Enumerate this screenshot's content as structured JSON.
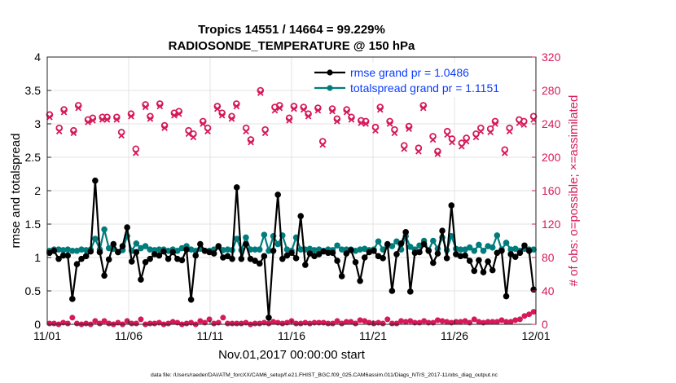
{
  "chart_data": {
    "type": "line",
    "title_line1": "Tropics 14551 / 14664 = 99.229%",
    "title_line2": "RADIOSONDE_TEMPERATURE @ 150 hPa",
    "xlabel": "Nov.01,2017 00:00:00 start",
    "ylabel_left": "rmse and totalspread",
    "ylabel_right": "# of obs: o=possible; ×=assimilated",
    "footnote": "data file: /Users/raeder/DAI/ATM_forcXX/CAM6_setup/f.e21.FHIST_BGC.f09_025.CAM6assim.011/Diags_NTrS_2017-11/obs_diag_output.nc",
    "x_range": [
      0,
      30
    ],
    "xticks": [
      0,
      5,
      10,
      15,
      20,
      25,
      30
    ],
    "xtick_labels": [
      "11/01",
      "11/06",
      "11/11",
      "11/16",
      "11/21",
      "11/26",
      "12/01"
    ],
    "y_left_range": [
      0,
      4
    ],
    "y_left_ticks": [
      0,
      0.5,
      1,
      1.5,
      2,
      2.5,
      3,
      3.5,
      4
    ],
    "y_left_tick_labels": [
      "0",
      "0.5",
      "1",
      "1.5",
      "2",
      "2.5",
      "3",
      "3.5",
      "4"
    ],
    "y_right_range": [
      0,
      320
    ],
    "y_right_ticks": [
      0,
      40,
      80,
      120,
      160,
      200,
      240,
      280,
      320
    ],
    "y_right_tick_labels": [
      "0",
      "40",
      "80",
      "120",
      "160",
      "200",
      "240",
      "280",
      "320"
    ],
    "legend_position": "top-right",
    "colors": {
      "rmse": "#000000",
      "spread": "#007c7c",
      "obs": "#d6195b",
      "legend_text": "#0a3cff"
    },
    "series": [
      {
        "name": "rmse grand pr = 1.0486",
        "axis": "left",
        "values": [
          1.07,
          1.1,
          0.98,
          1.03,
          1.03,
          0.38,
          0.9,
          0.98,
          1.02,
          1.09,
          2.15,
          1.08,
          0.73,
          0.97,
          1.2,
          1.08,
          1.17,
          1.45,
          0.94,
          1.08,
          0.67,
          0.93,
          0.98,
          1.05,
          1.03,
          1.09,
          0.98,
          1.08,
          0.98,
          0.96,
          1.12,
          0.37,
          1.03,
          1.2,
          1.1,
          1.08,
          1.06,
          1.17,
          1.0,
          1.02,
          0.98,
          2.05,
          0.98,
          1.2,
          0.98,
          0.95,
          0.91,
          1.02,
          0.1,
          1.1,
          1.94,
          0.98,
          1.03,
          1.07,
          0.99,
          1.62,
          0.89,
          1.06,
          1.02,
          1.05,
          1.09,
          1.07,
          1.07,
          0.95,
          0.72,
          1.06,
          1.11,
          0.93,
          0.65,
          1.0,
          1.08,
          1.1,
          1.02,
          0.99,
          1.2,
          0.5,
          1.05,
          1.21,
          1.38,
          0.49,
          1.07,
          1.08,
          1.2,
          1.1,
          0.92,
          1.06,
          1.4,
          0.99,
          1.78,
          1.05,
          1.02,
          1.03,
          0.95,
          0.8,
          0.96,
          0.78,
          0.94,
          0.81,
          1.07,
          1.1,
          0.42,
          1.05,
          1.01,
          1.07,
          1.18,
          1.1,
          0.52
        ]
      },
      {
        "name": "totalspread grand pr = 1.1151",
        "axis": "left",
        "values": [
          1.1,
          1.12,
          1.12,
          1.11,
          1.12,
          1.1,
          1.1,
          1.12,
          1.11,
          1.12,
          1.28,
          1.12,
          1.42,
          1.14,
          1.13,
          1.08,
          1.11,
          1.32,
          1.1,
          1.21,
          1.14,
          1.17,
          1.12,
          1.11,
          1.12,
          1.12,
          1.1,
          1.12,
          1.1,
          1.14,
          1.17,
          1.12,
          1.1,
          1.13,
          1.1,
          1.1,
          1.12,
          1.16,
          1.11,
          1.12,
          1.11,
          1.28,
          1.11,
          1.3,
          1.12,
          1.12,
          1.12,
          1.34,
          1.1,
          1.32,
          1.2,
          1.33,
          1.12,
          1.1,
          1.3,
          1.12,
          1.12,
          1.13,
          1.11,
          1.12,
          1.1,
          1.12,
          1.11,
          1.18,
          1.12,
          1.12,
          1.12,
          1.1,
          1.12,
          1.13,
          1.11,
          1.12,
          1.24,
          1.12,
          1.18,
          1.17,
          1.24,
          1.12,
          1.32,
          1.16,
          1.12,
          1.18,
          1.25,
          1.11,
          1.25,
          1.13,
          1.3,
          1.11,
          1.32,
          1.13,
          1.12,
          1.12,
          1.15,
          1.1,
          1.19,
          1.1,
          1.17,
          1.15,
          1.33,
          1.12,
          1.22,
          1.12,
          1.13,
          1.1,
          1.13,
          1.12,
          1.12
        ]
      },
      {
        "name": "obs possible",
        "axis": "right",
        "marker": "o",
        "values": [
          251,
          235,
          257,
          232,
          262,
          245,
          247,
          248,
          248,
          248,
          230,
          252,
          210,
          263,
          249,
          264,
          238,
          253,
          255,
          232,
          228,
          243,
          235,
          261,
          253,
          249,
          264,
          235,
          221,
          280,
          233,
          260,
          262,
          247,
          261,
          260,
          252,
          259,
          219,
          258,
          246,
          257,
          248,
          244,
          243,
          236,
          260,
          243,
          233,
          214,
          237,
          211,
          262,
          225,
          207,
          231,
          222,
          217,
          223,
          228,
          235,
          234,
          243,
          209,
          235,
          245,
          243,
          249
        ]
      },
      {
        "name": "obs assimilated",
        "axis": "right",
        "marker": "x",
        "values": [
          249,
          232,
          255,
          230,
          260,
          243,
          245,
          246,
          246,
          246,
          227,
          250,
          206,
          261,
          247,
          262,
          236,
          251,
          253,
          229,
          225,
          241,
          232,
          259,
          251,
          247,
          262,
          232,
          219,
          278,
          230,
          257,
          260,
          245,
          259,
          258,
          250,
          257,
          216,
          256,
          244,
          255,
          246,
          242,
          241,
          233,
          258,
          241,
          230,
          211,
          235,
          208,
          260,
          222,
          205,
          228,
          219,
          214,
          220,
          225,
          232,
          231,
          241,
          206,
          232,
          242,
          240,
          246
        ]
      },
      {
        "name": "obs rejected",
        "axis": "right",
        "marker": "o",
        "values": [
          1,
          1,
          0,
          2,
          1,
          8,
          1,
          0,
          1,
          0,
          4,
          1,
          4,
          1,
          0,
          2,
          0,
          4,
          1,
          1,
          6,
          0,
          1,
          1,
          2,
          0,
          1,
          3,
          2,
          0,
          1,
          2,
          0,
          4,
          2,
          6,
          1,
          2,
          8,
          1,
          1,
          1,
          1,
          2,
          0,
          1,
          1,
          2,
          1,
          3,
          2,
          1,
          2,
          4,
          1,
          1,
          2,
          1,
          2,
          2,
          2,
          1,
          1,
          4,
          1,
          3,
          3,
          1,
          5,
          4,
          2,
          1,
          2,
          1,
          6,
          1,
          1,
          4,
          3,
          4,
          2,
          2,
          4,
          2,
          2,
          5,
          4,
          3,
          2,
          3,
          3,
          4,
          2,
          6,
          3,
          2,
          3,
          3,
          3,
          5,
          3,
          3,
          5,
          6,
          10,
          12,
          15
        ]
      }
    ]
  }
}
